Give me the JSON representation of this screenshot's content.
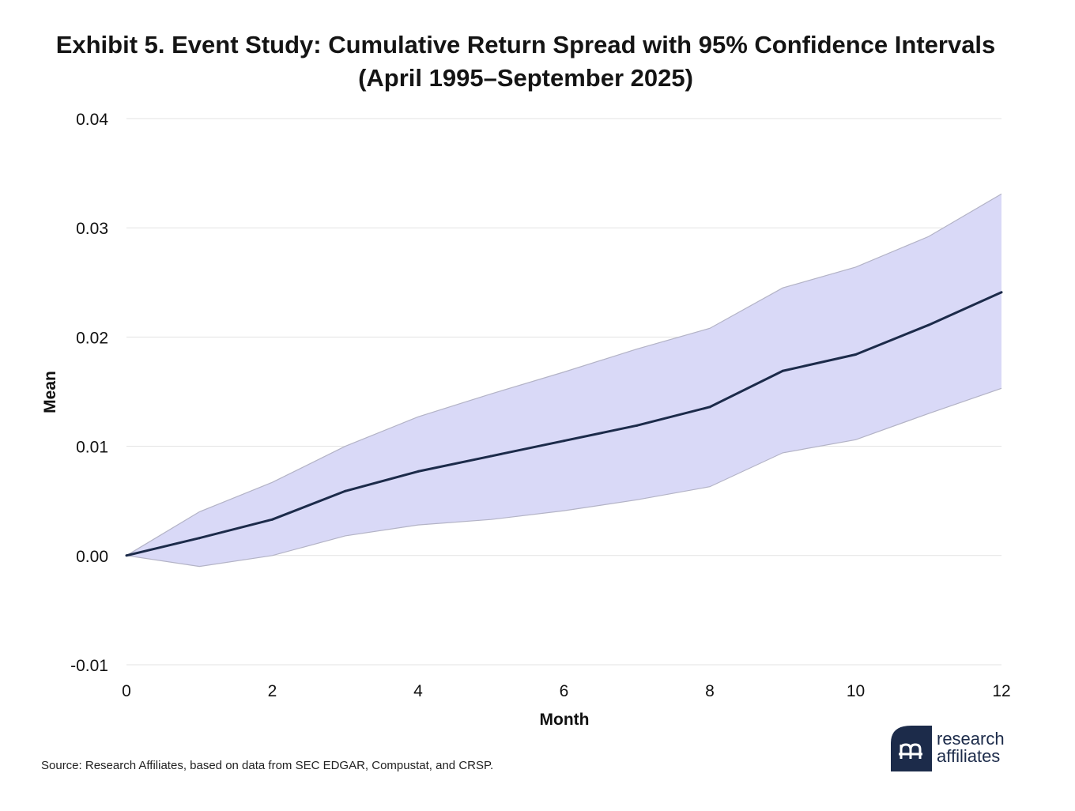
{
  "title_lines": [
    "Exhibit 5. Event Study: Cumulative Return Spread with 95% Confidence Intervals",
    "(April 1995–September 2025)"
  ],
  "source": "Source: Research Affiliates, based on data from SEC EDGAR, Compustat, and CRSP.",
  "logo": {
    "name": "research affiliates",
    "line1": "research",
    "line2": "affiliates"
  },
  "colors": {
    "line": "#1c2b4a",
    "band": "#d9d9f7",
    "band_edge": "#b3b3c6",
    "grid": "#e3e3e3",
    "logo": "#1c2b4a"
  },
  "chart_data": {
    "type": "line",
    "xlabel": "Month",
    "ylabel": "Mean",
    "xlim": [
      0,
      12
    ],
    "ylim": [
      -0.01,
      0.04
    ],
    "x_ticks": [
      0,
      2,
      4,
      6,
      8,
      10,
      12
    ],
    "y_ticks": [
      -0.01,
      0.0,
      0.01,
      0.02,
      0.03,
      0.04
    ],
    "y_tick_labels": [
      "-0.01",
      "0.00",
      "0.01",
      "0.02",
      "0.03",
      "0.04"
    ],
    "grid": "horizontal",
    "x": [
      0,
      1,
      2,
      3,
      4,
      5,
      6,
      7,
      8,
      9,
      10,
      11,
      12
    ],
    "series": [
      {
        "role": "mean",
        "values": [
          0.0,
          0.0016,
          0.0033,
          0.0059,
          0.0077,
          0.0091,
          0.0105,
          0.0119,
          0.0136,
          0.0169,
          0.0184,
          0.0211,
          0.0241
        ]
      },
      {
        "role": "upper_95",
        "values": [
          0.0,
          0.004,
          0.0067,
          0.01,
          0.0127,
          0.0148,
          0.0168,
          0.0189,
          0.0208,
          0.0245,
          0.0264,
          0.0292,
          0.0331
        ]
      },
      {
        "role": "lower_95",
        "values": [
          0.0,
          -0.001,
          0.0,
          0.0018,
          0.0028,
          0.0033,
          0.0041,
          0.0051,
          0.0063,
          0.0094,
          0.0106,
          0.013,
          0.0153
        ]
      }
    ]
  }
}
